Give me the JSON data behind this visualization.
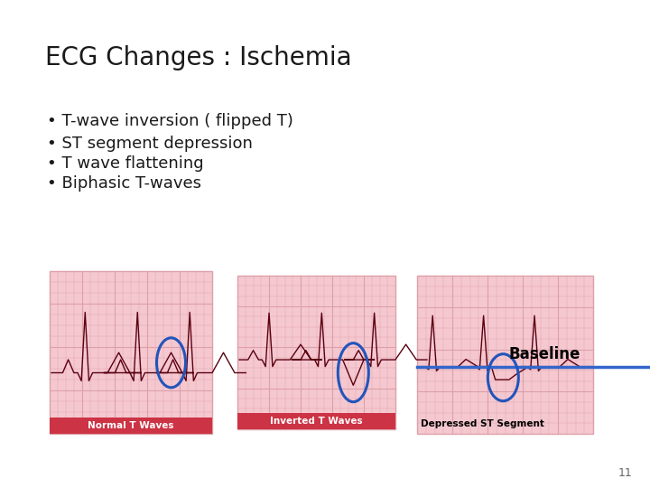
{
  "title": "ECG Changes : Ischemia",
  "bullets": [
    "T-wave inversion ( flipped T)",
    "ST segment depression",
    "T wave flattening",
    "Biphasic T-waves"
  ],
  "slide_bg": "#ffffff",
  "title_color": "#1a1a1a",
  "title_fontsize": 20,
  "bullet_fontsize": 13,
  "bullet_color": "#1a1a1a",
  "image_labels": [
    "Normal T Waves",
    "Inverted T Waves",
    "Depressed ST Segment"
  ],
  "baseline_label": "Baseline",
  "baseline_color": "#3366cc",
  "ecg_bg": "#f5c8d0",
  "ecg_grid_color": "#dda0a8",
  "ecg_line_color": "#5a0010",
  "circle_color": "#2255bb",
  "page_number": "11",
  "label_bg": "#cc3344",
  "label_text_color": "#ffffff"
}
